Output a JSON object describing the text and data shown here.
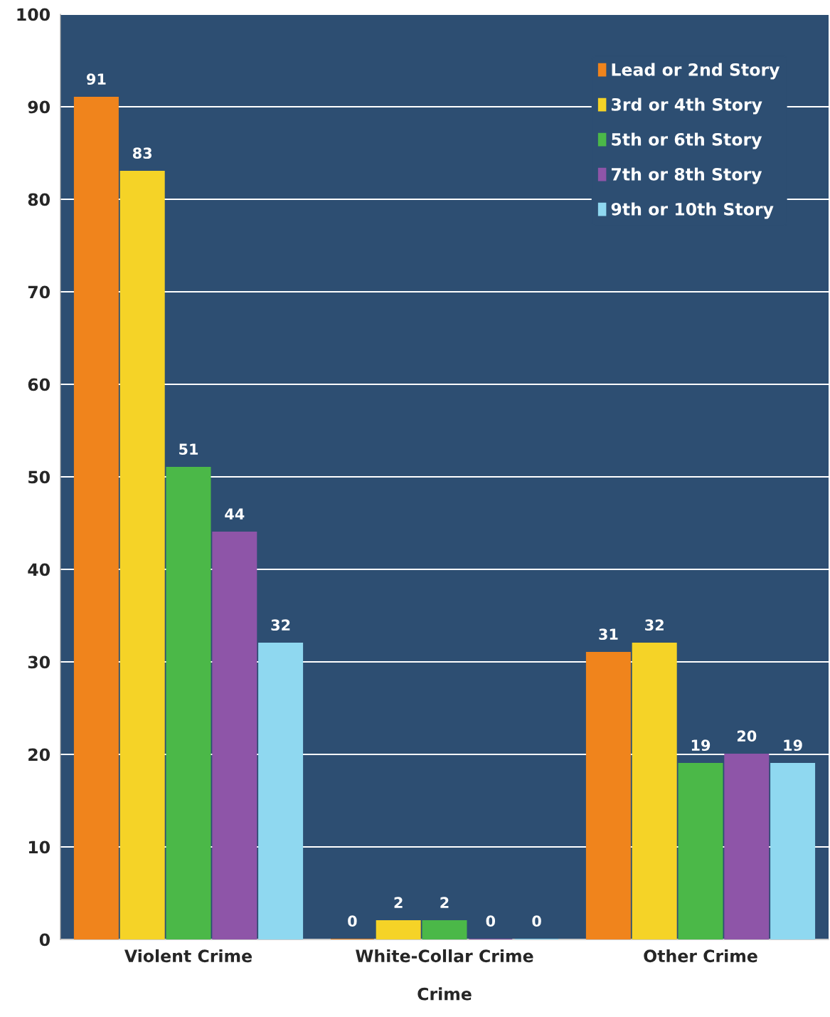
{
  "chart_data": {
    "type": "bar",
    "xlabel": "Crime",
    "categories": [
      "Violent Crime",
      "White-Collar Crime",
      "Other Crime"
    ],
    "series": [
      {
        "name": "Lead or 2nd Story",
        "color": "#f0841c",
        "values": [
          91,
          0,
          31
        ]
      },
      {
        "name": "3rd or 4th Story",
        "color": "#f5d327",
        "values": [
          83,
          2,
          32
        ]
      },
      {
        "name": "5th or 6th Story",
        "color": "#4bb848",
        "values": [
          51,
          2,
          19
        ]
      },
      {
        "name": "7th or 8th Story",
        "color": "#8e55a8",
        "values": [
          44,
          0,
          20
        ]
      },
      {
        "name": "9th or 10th Story",
        "color": "#8fd8f0",
        "values": [
          32,
          0,
          19
        ]
      }
    ],
    "ylim": [
      0,
      100
    ],
    "yticks": [
      0,
      10,
      20,
      30,
      40,
      50,
      60,
      70,
      80,
      90,
      100
    ],
    "grid": "y",
    "legend": "top right",
    "data_labels": true
  }
}
